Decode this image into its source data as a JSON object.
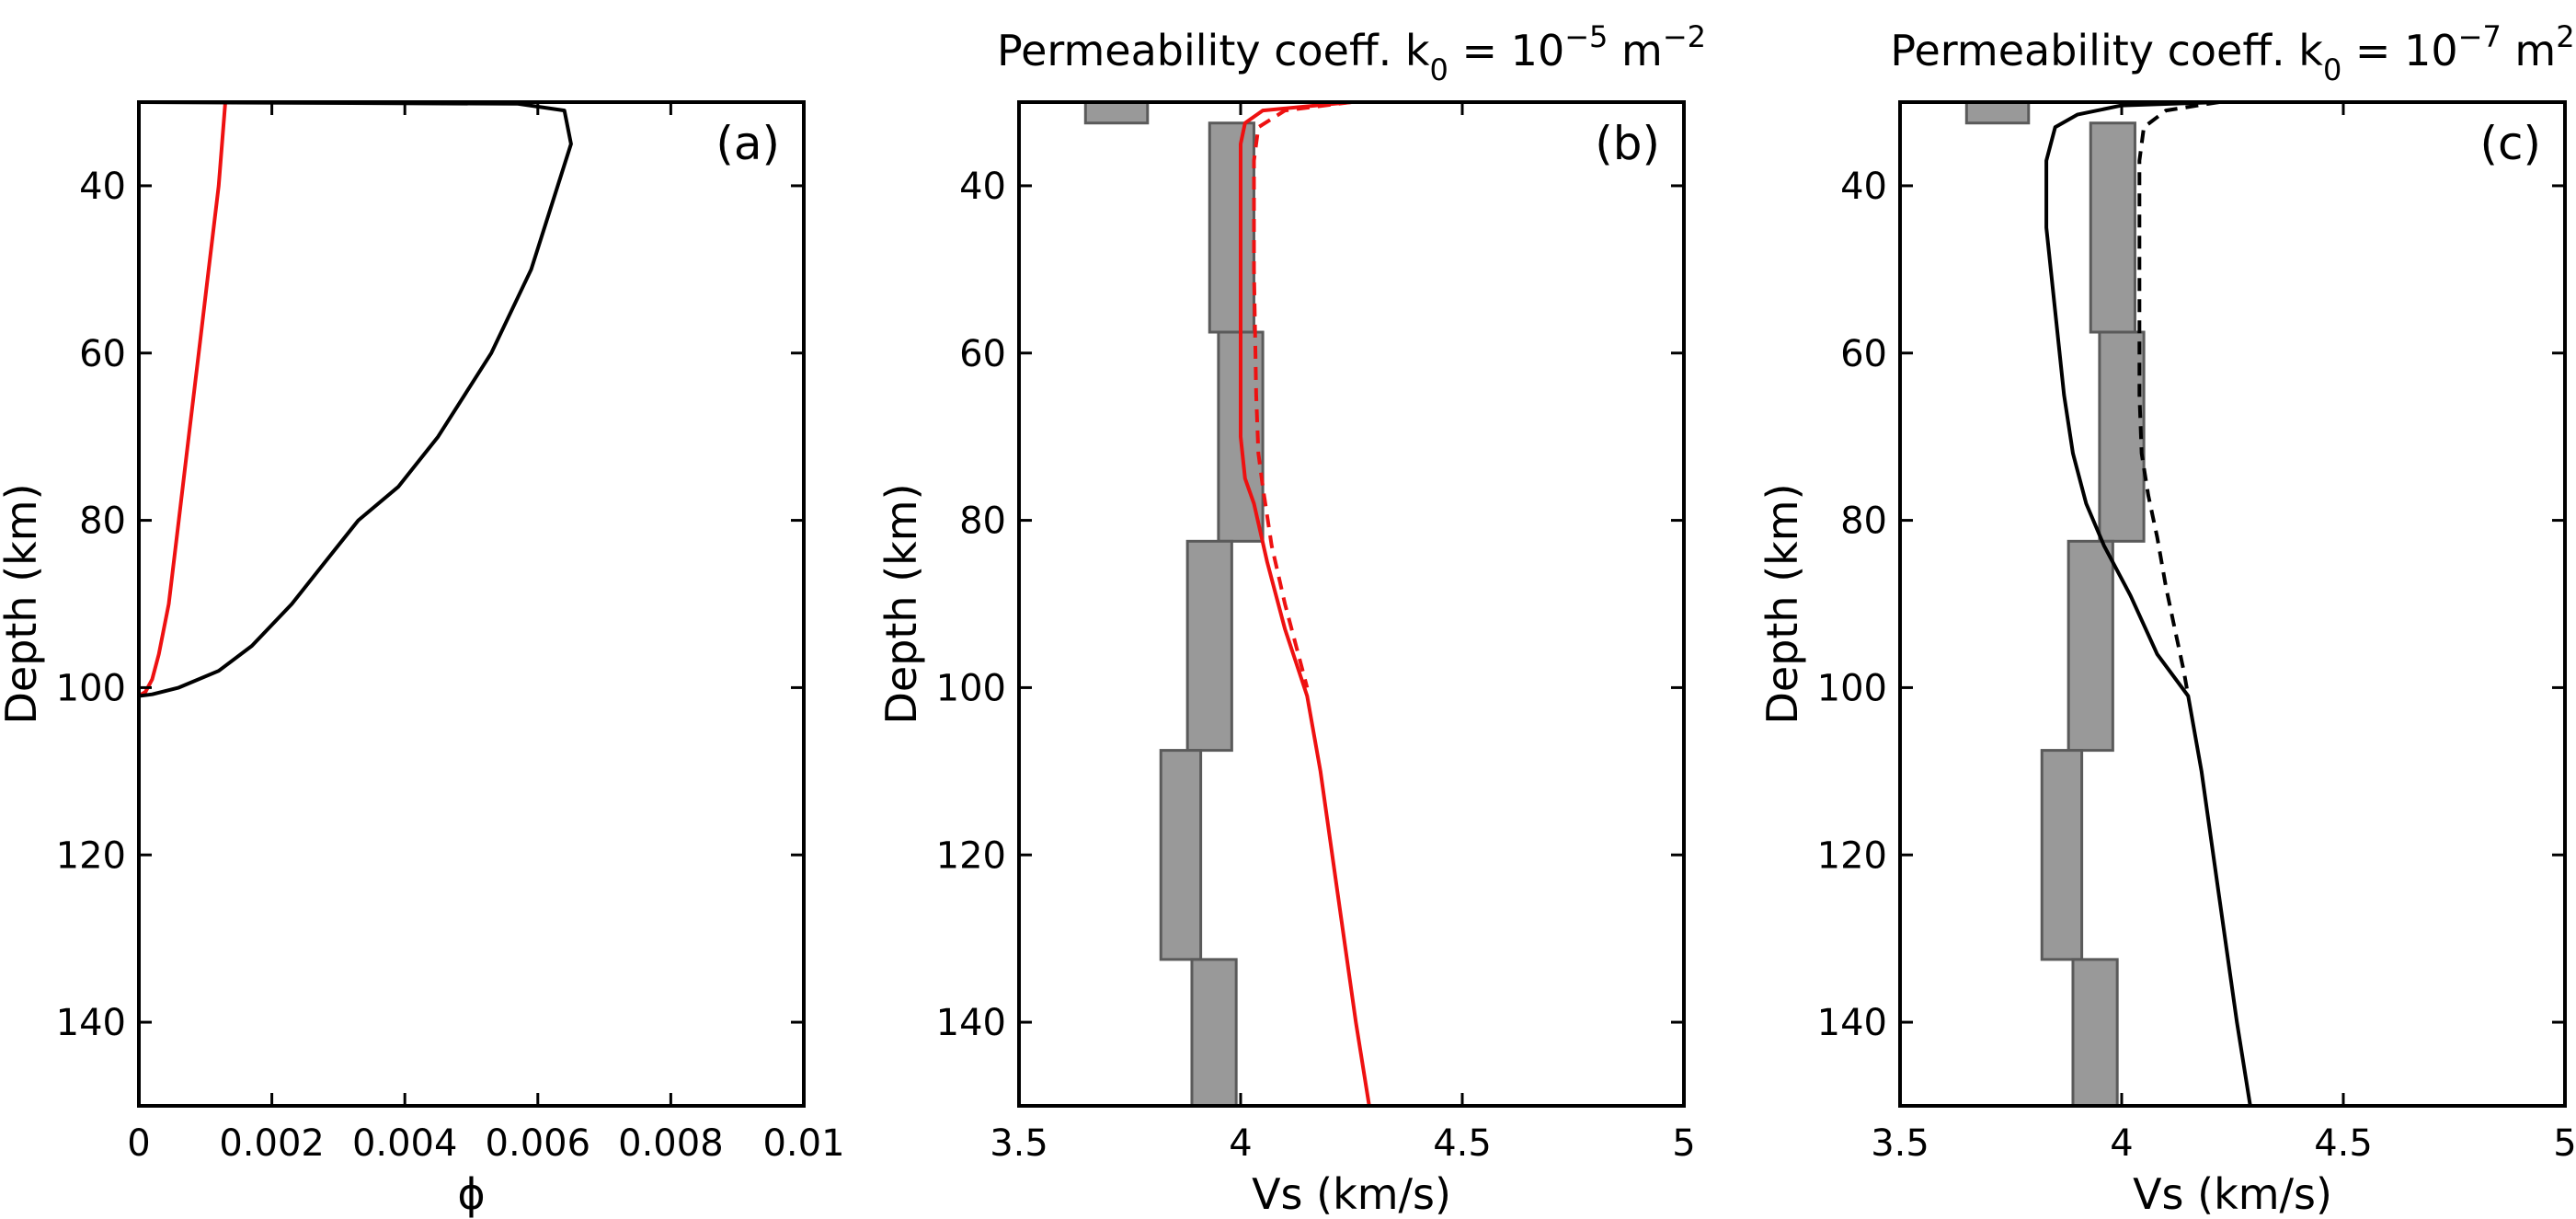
{
  "chart_data": [
    {
      "panel": "(a)",
      "type": "line",
      "title": "",
      "xlabel": "ϕ",
      "ylabel": "Depth (km)",
      "xlim": [
        0,
        0.01
      ],
      "ylim": [
        30,
        150
      ],
      "y_reversed": true,
      "xticks": [
        0,
        0.002,
        0.004,
        0.006,
        0.008,
        0.01
      ],
      "xtick_labels": [
        "0",
        "0.002",
        "0.004",
        "0.006",
        "0.008",
        "0.01"
      ],
      "yticks": [
        40,
        60,
        80,
        100,
        120,
        140
      ],
      "ytick_labels": [
        "40",
        "60",
        "80",
        "100",
        "120",
        "140"
      ],
      "series": [
        {
          "color": "#ee1111",
          "dash": "solid",
          "points": [
            [
              0.0013,
              30
            ],
            [
              0.0012,
              40
            ],
            [
              0.00105,
              50
            ],
            [
              0.0009,
              60
            ],
            [
              0.00075,
              70
            ],
            [
              0.0006,
              80
            ],
            [
              0.00045,
              90
            ],
            [
              0.0003,
              96
            ],
            [
              0.0002,
              99
            ],
            [
              0.0001,
              100.5
            ],
            [
              0,
              101
            ]
          ]
        },
        {
          "color": "#000000",
          "dash": "solid",
          "points": [
            [
              0.0,
              30
            ],
            [
              0.0057,
              30.2
            ],
            [
              0.0064,
              31
            ],
            [
              0.0065,
              35
            ],
            [
              0.0063,
              40
            ],
            [
              0.0059,
              50
            ],
            [
              0.0053,
              60
            ],
            [
              0.0045,
              70
            ],
            [
              0.0039,
              76
            ],
            [
              0.0033,
              80
            ],
            [
              0.0028,
              85
            ],
            [
              0.0023,
              90
            ],
            [
              0.0017,
              95
            ],
            [
              0.0012,
              98
            ],
            [
              0.0006,
              100
            ],
            [
              0.0002,
              100.8
            ],
            [
              0,
              101
            ]
          ]
        }
      ]
    },
    {
      "panel": "(b)",
      "type": "line",
      "title_main": "Permeability coeff. k",
      "title_sub": "0",
      "title_eq": " = 10",
      "title_exp": "−5",
      "title_unit": " m",
      "title_unit_exp": "−2",
      "xlabel": "Vs (km/s)",
      "ylabel": "Depth (km)",
      "xlim": [
        3.5,
        5
      ],
      "ylim": [
        30,
        150
      ],
      "y_reversed": true,
      "xticks": [
        3.5,
        4,
        4.5,
        5
      ],
      "xtick_labels": [
        "3.5",
        "4",
        "4.5",
        "5"
      ],
      "yticks": [
        40,
        60,
        80,
        100,
        120,
        140
      ],
      "ytick_labels": [
        "40",
        "60",
        "80",
        "100",
        "120",
        "140"
      ],
      "band": {
        "color": "#999999",
        "layers": [
          [
            30,
            32.5,
            3.65,
            3.79
          ],
          [
            32.5,
            57.5,
            3.93,
            4.03
          ],
          [
            57.5,
            82.5,
            3.95,
            4.05
          ],
          [
            82.5,
            107.5,
            3.88,
            3.98
          ],
          [
            107.5,
            132.5,
            3.82,
            3.91
          ],
          [
            132.5,
            150,
            3.89,
            3.99
          ]
        ]
      },
      "series": [
        {
          "color": "#ee1111",
          "dash": "solid",
          "points": [
            [
              4.25,
              30
            ],
            [
              4.05,
              31
            ],
            [
              4.01,
              32.5
            ],
            [
              4.0,
              35
            ],
            [
              4.0,
              50
            ],
            [
              4.0,
              70
            ],
            [
              4.01,
              75
            ],
            [
              4.03,
              78
            ],
            [
              4.06,
              85
            ],
            [
              4.1,
              93
            ],
            [
              4.15,
              101
            ],
            [
              4.18,
              110
            ],
            [
              4.22,
              125
            ],
            [
              4.26,
              140
            ],
            [
              4.29,
              150
            ]
          ]
        },
        {
          "color": "#ee1111",
          "dash": "dashed",
          "points": [
            [
              4.25,
              30
            ],
            [
              4.1,
              31
            ],
            [
              4.04,
              33
            ],
            [
              4.03,
              37
            ],
            [
              4.03,
              50
            ],
            [
              4.035,
              65
            ],
            [
              4.04,
              72
            ],
            [
              4.05,
              76
            ],
            [
              4.07,
              83
            ],
            [
              4.1,
              90
            ],
            [
              4.13,
              96
            ],
            [
              4.15,
              100
            ]
          ]
        }
      ]
    },
    {
      "panel": "(c)",
      "type": "line",
      "title_main": "Permeability coeff. k",
      "title_sub": "0",
      "title_eq": " = 10",
      "title_exp": "−7",
      "title_unit": " m",
      "title_unit_exp": "2",
      "xlabel": "Vs (km/s)",
      "ylabel": "Depth (km)",
      "xlim": [
        3.5,
        5
      ],
      "ylim": [
        30,
        150
      ],
      "y_reversed": true,
      "xticks": [
        3.5,
        4,
        4.5,
        5
      ],
      "xtick_labels": [
        "3.5",
        "4",
        "4.5",
        "5"
      ],
      "yticks": [
        40,
        60,
        80,
        100,
        120,
        140
      ],
      "ytick_labels": [
        "40",
        "60",
        "80",
        "100",
        "120",
        "140"
      ],
      "band": {
        "color": "#999999",
        "layers": [
          [
            30,
            32.5,
            3.65,
            3.79
          ],
          [
            32.5,
            57.5,
            3.93,
            4.03
          ],
          [
            57.5,
            82.5,
            3.95,
            4.05
          ],
          [
            82.5,
            107.5,
            3.88,
            3.98
          ],
          [
            107.5,
            132.5,
            3.82,
            3.91
          ],
          [
            132.5,
            150,
            3.89,
            3.99
          ]
        ]
      },
      "series": [
        {
          "color": "#000000",
          "dash": "solid",
          "points": [
            [
              4.22,
              30
            ],
            [
              4.0,
              30.4
            ],
            [
              3.9,
              31.5
            ],
            [
              3.85,
              33
            ],
            [
              3.83,
              37
            ],
            [
              3.83,
              45
            ],
            [
              3.85,
              55
            ],
            [
              3.87,
              65
            ],
            [
              3.89,
              72
            ],
            [
              3.92,
              78
            ],
            [
              3.96,
              83
            ],
            [
              4.02,
              89
            ],
            [
              4.08,
              96
            ],
            [
              4.15,
              101
            ],
            [
              4.18,
              110
            ],
            [
              4.22,
              125
            ],
            [
              4.26,
              140
            ],
            [
              4.29,
              150
            ]
          ]
        },
        {
          "color": "#000000",
          "dash": "dashed",
          "points": [
            [
              4.22,
              30
            ],
            [
              4.1,
              31
            ],
            [
              4.05,
              33
            ],
            [
              4.04,
              37
            ],
            [
              4.04,
              50
            ],
            [
              4.04,
              65
            ],
            [
              4.045,
              72
            ],
            [
              4.06,
              77
            ],
            [
              4.08,
              82
            ],
            [
              4.1,
              88
            ],
            [
              4.12,
              93
            ],
            [
              4.14,
              98
            ],
            [
              4.15,
              101
            ]
          ]
        }
      ]
    }
  ]
}
